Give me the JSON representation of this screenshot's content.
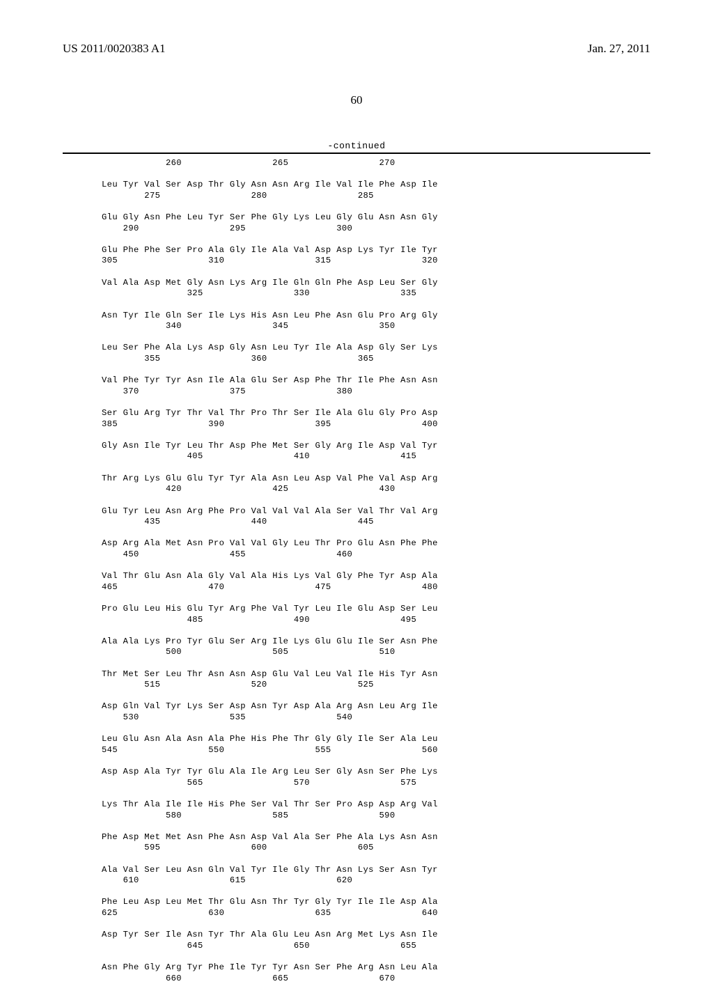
{
  "header": {
    "pub_number": "US 2011/0020383 A1",
    "pub_date": "Jan. 27, 2011"
  },
  "page_number": "60",
  "continued_label": "-continued",
  "sequence_lines": [
    "            260                 265                 270",
    "",
    "Leu Tyr Val Ser Asp Thr Gly Asn Asn Arg Ile Val Ile Phe Asp Ile",
    "        275                 280                 285",
    "",
    "Glu Gly Asn Phe Leu Tyr Ser Phe Gly Lys Leu Gly Glu Asn Asn Gly",
    "    290                 295                 300",
    "",
    "Glu Phe Phe Ser Pro Ala Gly Ile Ala Val Asp Asp Lys Tyr Ile Tyr",
    "305                 310                 315                 320",
    "",
    "Val Ala Asp Met Gly Asn Lys Arg Ile Gln Gln Phe Asp Leu Ser Gly",
    "                325                 330                 335",
    "",
    "Asn Tyr Ile Gln Ser Ile Lys His Asn Leu Phe Asn Glu Pro Arg Gly",
    "            340                 345                 350",
    "",
    "Leu Ser Phe Ala Lys Asp Gly Asn Leu Tyr Ile Ala Asp Gly Ser Lys",
    "        355                 360                 365",
    "",
    "Val Phe Tyr Tyr Asn Ile Ala Glu Ser Asp Phe Thr Ile Phe Asn Asn",
    "    370                 375                 380",
    "",
    "Ser Glu Arg Tyr Thr Val Thr Pro Thr Ser Ile Ala Glu Gly Pro Asp",
    "385                 390                 395                 400",
    "",
    "Gly Asn Ile Tyr Leu Thr Asp Phe Met Ser Gly Arg Ile Asp Val Tyr",
    "                405                 410                 415",
    "",
    "Thr Arg Lys Glu Glu Tyr Tyr Ala Asn Leu Asp Val Phe Val Asp Arg",
    "            420                 425                 430",
    "",
    "Glu Tyr Leu Asn Arg Phe Pro Val Val Val Ala Ser Val Thr Val Arg",
    "        435                 440                 445",
    "",
    "Asp Arg Ala Met Asn Pro Val Val Gly Leu Thr Pro Glu Asn Phe Phe",
    "    450                 455                 460",
    "",
    "Val Thr Glu Asn Ala Gly Val Ala His Lys Val Gly Phe Tyr Asp Ala",
    "465                 470                 475                 480",
    "",
    "Pro Glu Leu His Glu Tyr Arg Phe Val Tyr Leu Ile Glu Asp Ser Leu",
    "                485                 490                 495",
    "",
    "Ala Ala Lys Pro Tyr Glu Ser Arg Ile Lys Glu Glu Ile Ser Asn Phe",
    "            500                 505                 510",
    "",
    "Thr Met Ser Leu Thr Asn Asn Asp Glu Val Leu Val Ile His Tyr Asn",
    "        515                 520                 525",
    "",
    "Asp Gln Val Tyr Lys Ser Asp Asn Tyr Asp Ala Arg Asn Leu Arg Ile",
    "    530                 535                 540",
    "",
    "Leu Glu Asn Ala Asn Ala Phe His Phe Thr Gly Gly Ile Ser Ala Leu",
    "545                 550                 555                 560",
    "",
    "Asp Asp Ala Tyr Tyr Glu Ala Ile Arg Leu Ser Gly Asn Ser Phe Lys",
    "                565                 570                 575",
    "",
    "Lys Thr Ala Ile Ile His Phe Ser Val Thr Ser Pro Asp Asp Arg Val",
    "            580                 585                 590",
    "",
    "Phe Asp Met Met Asn Phe Asn Asp Val Ala Ser Phe Ala Lys Asn Asn",
    "        595                 600                 605",
    "",
    "Ala Val Ser Leu Asn Gln Val Tyr Ile Gly Thr Asn Lys Ser Asn Tyr",
    "    610                 615                 620",
    "",
    "Phe Leu Asp Leu Met Thr Glu Asn Thr Tyr Gly Tyr Ile Ile Asp Ala",
    "625                 630                 635                 640",
    "",
    "Asp Tyr Ser Ile Asn Tyr Thr Ala Glu Leu Asn Arg Met Lys Asn Ile",
    "                645                 650                 655",
    "",
    "Asn Phe Gly Arg Tyr Phe Ile Tyr Tyr Asn Ser Phe Arg Asn Leu Ala",
    "            660                 665                 670"
  ]
}
